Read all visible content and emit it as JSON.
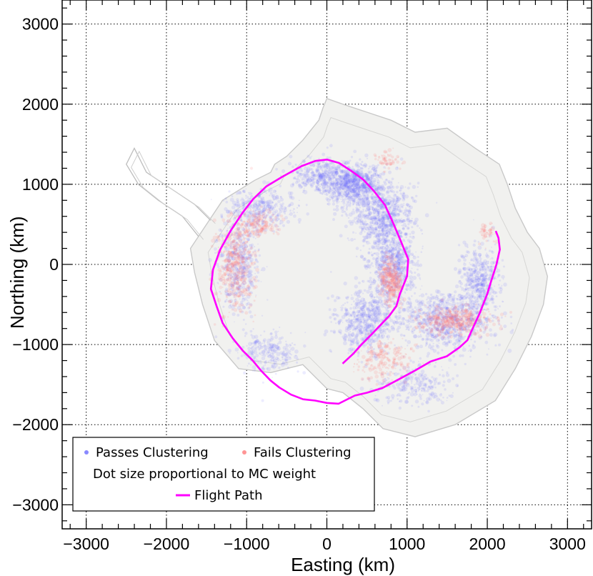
{
  "chart_data": {
    "type": "scatter",
    "title": "",
    "xlabel": "Easting (km)",
    "ylabel": "Northing (km)",
    "xlim": [
      -3300,
      3300
    ],
    "ylim": [
      -3300,
      3300
    ],
    "xticks": [
      -3000,
      -2000,
      -1000,
      0,
      1000,
      2000,
      3000
    ],
    "yticks": [
      -3000,
      -2000,
      -1000,
      0,
      1000,
      2000,
      3000
    ],
    "xtick_labels": [
      "−3000",
      "−2000",
      "−1000",
      "0",
      "1000",
      "2000",
      "3000"
    ],
    "ytick_labels": [
      "−3000",
      "−2000",
      "−1000",
      "0",
      "1000",
      "2000",
      "3000"
    ],
    "grid": true,
    "grid_style": "dotted",
    "legend_position": "bottom-left",
    "colors": {
      "passes": "#6b6bff",
      "fails": "#ff7b7b",
      "flight_path": "#ff00ff",
      "continent_outline": "#b8b8b8"
    },
    "legend": [
      {
        "marker": "dot",
        "color": "#6b6bff",
        "label": "Passes Clustering"
      },
      {
        "marker": "dot",
        "color": "#ff7b7b",
        "label": "Fails Clustering"
      },
      {
        "marker": "none",
        "label": "Dot size proportional to MC weight"
      },
      {
        "marker": "line",
        "color": "#ff00ff",
        "label": "Flight Path"
      }
    ],
    "series": [
      {
        "name": "Flight Path",
        "kind": "line",
        "color": "#ff00ff",
        "x": [
          200,
          330,
          430,
          560,
          680,
          780,
          870,
          910,
          1000,
          1010,
          920,
          820,
          720,
          580,
          450,
          300,
          150,
          0,
          -150,
          -320,
          -560,
          -760,
          -920,
          -1050,
          -1200,
          -1330,
          -1420,
          -1440,
          -1380,
          -1300,
          -1180,
          -1040,
          -930,
          -830,
          -700,
          -600,
          -450,
          -300,
          -150,
          0,
          150,
          250,
          350,
          500,
          700,
          900,
          1100,
          1300,
          1500,
          1650,
          1760,
          1830,
          1900,
          2000,
          2050,
          2120,
          2150,
          2140,
          2100
        ],
        "y": [
          -1240,
          -1120,
          -1000,
          -870,
          -750,
          -640,
          -520,
          -380,
          -150,
          70,
          300,
          520,
          740,
          920,
          1060,
          1170,
          1260,
          1310,
          1290,
          1220,
          1100,
          970,
          820,
          640,
          420,
          180,
          -60,
          -300,
          -530,
          -740,
          -920,
          -1080,
          -1200,
          -1320,
          -1440,
          -1540,
          -1620,
          -1680,
          -1700,
          -1730,
          -1740,
          -1690,
          -1640,
          -1600,
          -1540,
          -1440,
          -1320,
          -1210,
          -1150,
          -1040,
          -940,
          -780,
          -600,
          -380,
          -200,
          0,
          180,
          330,
          420
        ]
      },
      {
        "name": "Passes Clustering",
        "kind": "scatter-density",
        "color": "#6b6bff",
        "regions": [
          {
            "cx": 300,
            "cy": 1000,
            "rx": 380,
            "ry": 260,
            "n": 900
          },
          {
            "cx": 700,
            "cy": 600,
            "rx": 350,
            "ry": 420,
            "n": 800
          },
          {
            "cx": 820,
            "cy": 0,
            "rx": 300,
            "ry": 450,
            "n": 650
          },
          {
            "cx": 500,
            "cy": -700,
            "rx": 380,
            "ry": 380,
            "n": 650
          },
          {
            "cx": 1500,
            "cy": -700,
            "rx": 550,
            "ry": 350,
            "n": 850
          },
          {
            "cx": 1900,
            "cy": -200,
            "rx": 250,
            "ry": 400,
            "n": 450
          },
          {
            "cx": -1100,
            "cy": 0,
            "rx": 250,
            "ry": 650,
            "n": 500
          },
          {
            "cx": -800,
            "cy": 700,
            "rx": 400,
            "ry": 250,
            "n": 350
          },
          {
            "cx": -700,
            "cy": -1100,
            "rx": 350,
            "ry": 250,
            "n": 250
          },
          {
            "cx": 1100,
            "cy": -1500,
            "rx": 500,
            "ry": 250,
            "n": 250
          },
          {
            "cx": -100,
            "cy": 1100,
            "rx": 350,
            "ry": 200,
            "n": 300
          }
        ]
      },
      {
        "name": "Fails Clustering",
        "kind": "scatter-density",
        "color": "#ff7b7b",
        "regions": [
          {
            "cx": 800,
            "cy": -200,
            "rx": 140,
            "ry": 280,
            "n": 350
          },
          {
            "cx": 1600,
            "cy": -700,
            "rx": 420,
            "ry": 170,
            "n": 450
          },
          {
            "cx": -1150,
            "cy": 0,
            "rx": 220,
            "ry": 560,
            "n": 450
          },
          {
            "cx": -850,
            "cy": 500,
            "rx": 230,
            "ry": 150,
            "n": 150
          },
          {
            "cx": 700,
            "cy": -1200,
            "rx": 350,
            "ry": 250,
            "n": 200
          },
          {
            "cx": 2000,
            "cy": 400,
            "rx": 120,
            "ry": 120,
            "n": 50
          },
          {
            "cx": 750,
            "cy": 1300,
            "rx": 150,
            "ry": 120,
            "n": 60
          }
        ]
      }
    ]
  }
}
